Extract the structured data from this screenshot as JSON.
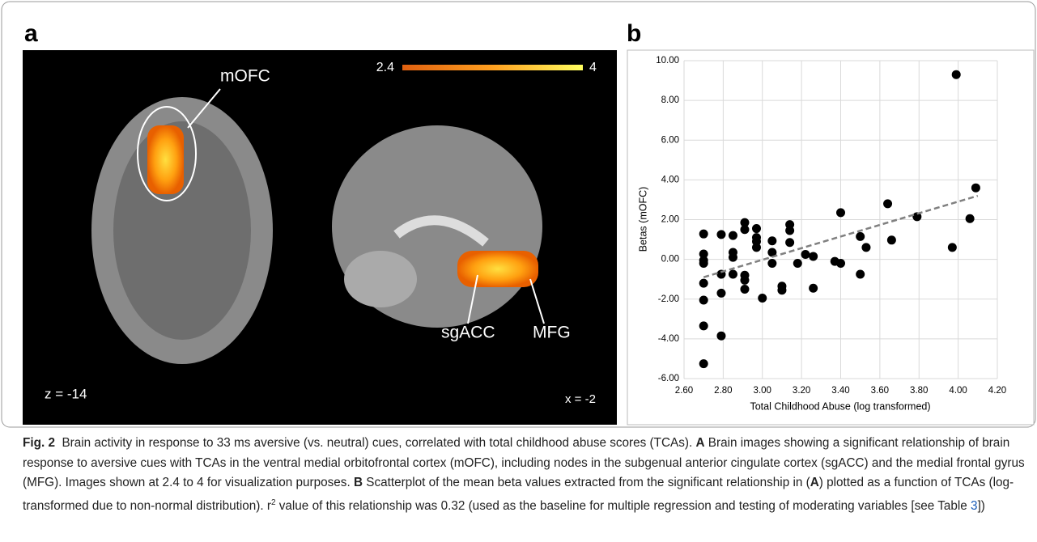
{
  "panel_labels": [
    "a",
    "b"
  ],
  "brain": {
    "colorbar_min": "2.4",
    "colorbar_max": "4",
    "labels": [
      "mOFC",
      "sgACC",
      "MFG"
    ],
    "slices": [
      "z = -14",
      "x = -2"
    ]
  },
  "chart_data": {
    "type": "scatter",
    "xlabel": "Total Childhood Abuse (log transformed)",
    "ylabel": "Betas (mOFC)",
    "x": [
      2.7,
      2.7,
      2.7,
      2.7,
      2.7,
      2.7,
      2.7,
      2.7,
      2.79,
      2.79,
      2.79,
      2.79,
      2.85,
      2.85,
      2.85,
      2.85,
      2.91,
      2.91,
      2.91,
      2.91,
      2.91,
      2.97,
      2.97,
      2.97,
      2.97,
      3.0,
      3.05,
      3.05,
      3.05,
      3.1,
      3.1,
      3.14,
      3.14,
      3.14,
      3.18,
      3.22,
      3.26,
      3.26,
      3.37,
      3.4,
      3.4,
      3.5,
      3.5,
      3.53,
      3.64,
      3.66,
      3.79,
      3.97,
      3.99,
      4.06,
      4.09
    ],
    "values": [
      1.28,
      0.27,
      -0.05,
      -0.2,
      -1.2,
      -2.05,
      -3.35,
      -5.25,
      1.25,
      -0.75,
      -1.7,
      -3.85,
      1.2,
      0.35,
      0.1,
      -0.75,
      1.85,
      1.5,
      -0.8,
      -1.05,
      -1.5,
      1.55,
      1.1,
      0.9,
      0.6,
      -1.95,
      0.93,
      0.35,
      -0.2,
      -1.35,
      -1.55,
      1.75,
      1.45,
      0.85,
      -0.2,
      0.25,
      0.15,
      -1.45,
      -0.1,
      2.35,
      -0.2,
      1.15,
      -0.75,
      0.6,
      2.8,
      0.97,
      2.15,
      0.6,
      9.3,
      2.05,
      3.6
    ],
    "color": "#000000",
    "trendline": {
      "x": [
        2.7,
        4.1
      ],
      "values": [
        -0.9,
        3.2
      ],
      "color": "#808080"
    },
    "xlim": [
      2.6,
      4.2
    ],
    "ylim": [
      -6,
      10
    ],
    "xticks": [
      {
        "value": 2.6,
        "label": "2.60"
      },
      {
        "value": 2.8,
        "label": "2.80"
      },
      {
        "value": 3.0,
        "label": "3.00"
      },
      {
        "value": 3.2,
        "label": "3.20"
      },
      {
        "value": 3.4,
        "label": "3.40"
      },
      {
        "value": 3.6,
        "label": "3.60"
      },
      {
        "value": 3.8,
        "label": "3.80"
      },
      {
        "value": 4.0,
        "label": "4.00"
      },
      {
        "value": 4.2,
        "label": "4.20"
      }
    ],
    "yticks": [
      {
        "value": -6,
        "label": "-6.00"
      },
      {
        "value": -4,
        "label": "-4.00"
      },
      {
        "value": -2,
        "label": "-2.00"
      },
      {
        "value": 0,
        "label": "0.00"
      },
      {
        "value": 2,
        "label": "2.00"
      },
      {
        "value": 4,
        "label": "4.00"
      },
      {
        "value": 6,
        "label": "6.00"
      },
      {
        "value": 8,
        "label": "8.00"
      },
      {
        "value": 10,
        "label": "10.00"
      }
    ],
    "grid": true
  },
  "caption": [
    "Fig. 2",
    "  Brain activity in response to 33 ms aversive (vs. neutral) cues, correlated with total childhood abuse scores (TCAs). ",
    "A",
    " Brain images showing a significant relationship of brain response to aversive cues with TCAs in the ventral medial orbitofrontal cortex (mOFC), including nodes in the subgenual anterior cingulate cortex (sgACC) and the medial frontal gyrus (MFG). Images shown at 2.4 to 4 for visualization purposes. ",
    "B",
    " Scatterplot of the mean beta values extracted from the significant relationship in (",
    "A",
    ") plotted as a function of TCAs (log-transformed due to non-normal distribution). r",
    "2",
    " value of this relationship was 0.32 (used as the baseline for multiple regression and testing of moderating variables [see Table ",
    "3",
    "])"
  ]
}
